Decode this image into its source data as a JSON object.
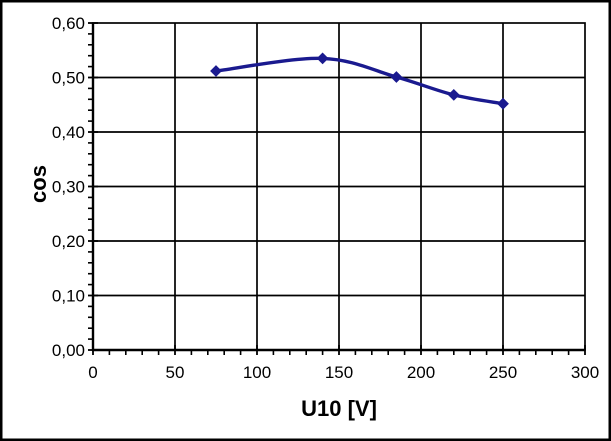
{
  "chart_data": {
    "type": "line",
    "title": "",
    "xlabel": "U10 [V]",
    "ylabel": "cos",
    "series": [
      {
        "name": "cos",
        "x": [
          75,
          140,
          185,
          220,
          250
        ],
        "y": [
          0.512,
          0.535,
          0.501,
          0.468,
          0.452
        ],
        "color": "#1a1a8f",
        "marker": "diamond",
        "marker_size": 5.2,
        "line_width": 3.4,
        "smoothed": true
      }
    ],
    "xlim": [
      0,
      300
    ],
    "ylim": [
      0.0,
      0.6
    ],
    "x_ticks": [
      0,
      50,
      100,
      150,
      200,
      250,
      300
    ],
    "x_tick_labels": [
      "0",
      "50",
      "100",
      "150",
      "200",
      "250",
      "300"
    ],
    "x_minor_unit": 10,
    "y_ticks": [
      0.0,
      0.1,
      0.2,
      0.3,
      0.4,
      0.5,
      0.6
    ],
    "y_tick_labels": [
      "0,00",
      "0,10",
      "0,20",
      "0,30",
      "0,40",
      "0,50",
      "0,60"
    ],
    "y_minor_unit": 0.02,
    "grid": "major-both",
    "legend": "none",
    "grid_color": "#000000",
    "axis_color": "#000000",
    "text_color": "#000000",
    "plot_background": "#ffffff",
    "chart_background": "#ffffff",
    "outer_border_color": "#000000"
  }
}
